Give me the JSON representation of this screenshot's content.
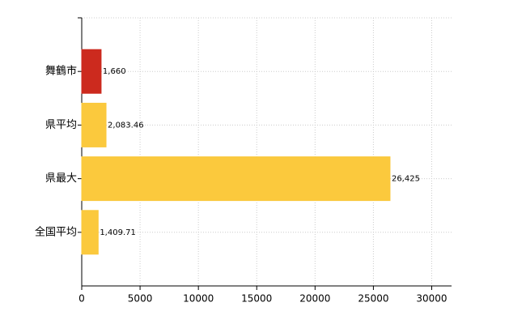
{
  "chart_data": {
    "type": "hbar",
    "categories": [
      "舞鶴市",
      "県平均",
      "県最大",
      "全国平均"
    ],
    "values": [
      1660,
      2083.46,
      26425,
      1409.71
    ],
    "value_labels": [
      "1,660",
      "2,083.46",
      "26,425",
      "1,409.71"
    ],
    "colors": [
      "#cc2a1e",
      "#fbc93d",
      "#fbc93d",
      "#fbc93d"
    ],
    "xlim": [
      0,
      31700
    ],
    "xticks": [
      0,
      5000,
      10000,
      15000,
      20000,
      25000,
      30000
    ],
    "grid": true
  }
}
